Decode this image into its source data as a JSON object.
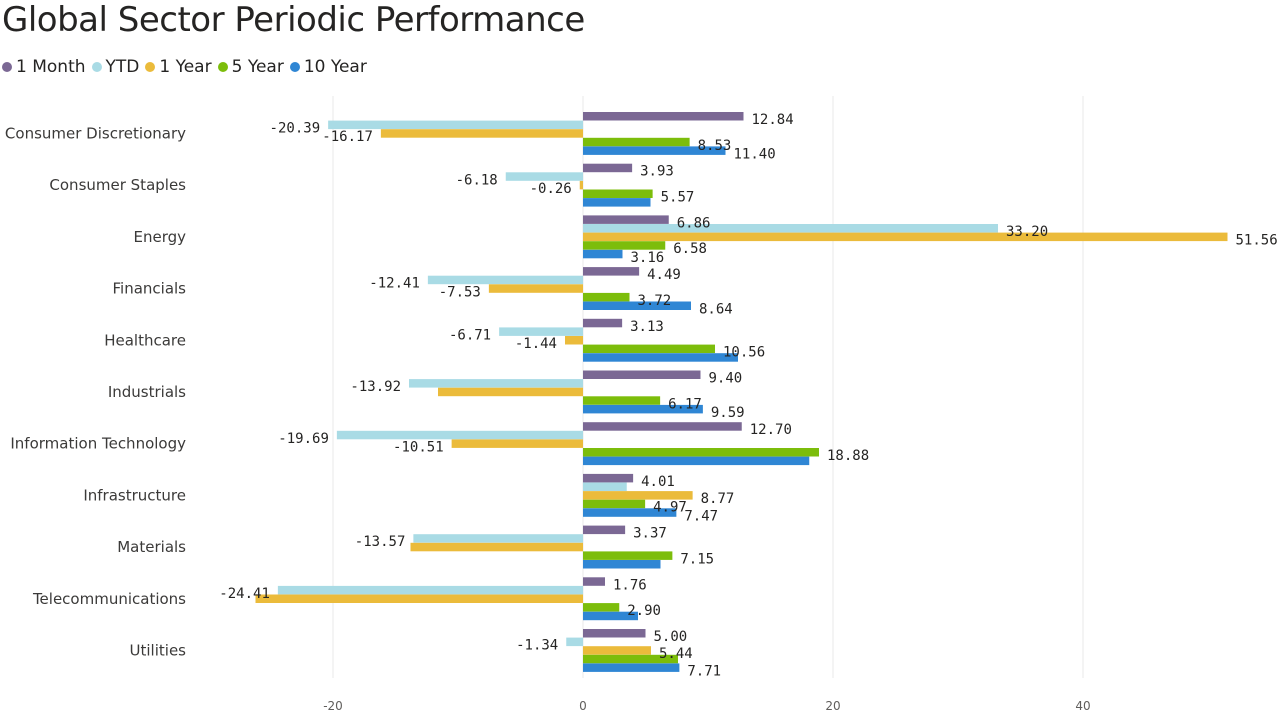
{
  "chart_data": {
    "type": "bar",
    "orientation": "horizontal",
    "title": "Global Sector Periodic Performance",
    "categories": [
      "Consumer Discretionary",
      "Consumer Staples",
      "Energy",
      "Financials",
      "Healthcare",
      "Industrials",
      "Information Technology",
      "Infrastructure",
      "Materials",
      "Telecommunications",
      "Utilities"
    ],
    "series": [
      {
        "name": "1 Month",
        "color": "#7b6894",
        "values": [
          12.84,
          3.93,
          6.86,
          4.49,
          3.13,
          9.4,
          12.7,
          4.01,
          3.37,
          1.76,
          5.0
        ],
        "labels": [
          "12.84",
          "3.93",
          "6.86",
          "4.49",
          "3.13",
          "9.40",
          "12.70",
          "4.01",
          "3.37",
          "1.76",
          "5.00"
        ]
      },
      {
        "name": "YTD",
        "color": "#a9dbe5",
        "values": [
          -20.39,
          -6.18,
          33.2,
          -12.41,
          -6.71,
          -13.92,
          -19.69,
          3.5,
          -13.57,
          -24.41,
          -1.34
        ],
        "labels": [
          "-20.39",
          "-6.18",
          "33.20",
          "-12.41",
          "-6.71",
          "-13.92",
          "-19.69",
          "",
          "-13.57",
          "-24.41",
          "-1.34"
        ]
      },
      {
        "name": "1 Year",
        "color": "#ebbb3b",
        "values": [
          -16.17,
          -0.26,
          51.56,
          -7.53,
          -1.44,
          -11.6,
          -10.51,
          8.77,
          -13.8,
          -26.2,
          5.44
        ],
        "labels": [
          "-16.17",
          "-0.26",
          "51.56",
          "-7.53",
          "-1.44",
          "",
          "-10.51",
          "8.77",
          "",
          "",
          "5.44"
        ]
      },
      {
        "name": "5 Year",
        "color": "#7cbd0b",
        "values": [
          8.53,
          5.57,
          6.58,
          3.72,
          10.56,
          6.17,
          18.88,
          4.97,
          7.15,
          2.9,
          7.6
        ],
        "labels": [
          "8.53",
          "5.57",
          "6.58",
          "3.72",
          "10.56",
          "6.17",
          "18.88",
          "4.97",
          "7.15",
          "2.90",
          ""
        ]
      },
      {
        "name": "10 Year",
        "color": "#2f86d4",
        "values": [
          11.4,
          5.4,
          3.16,
          8.64,
          12.4,
          9.59,
          18.1,
          7.47,
          6.2,
          4.4,
          7.71
        ],
        "labels": [
          "11.40",
          "",
          "3.16",
          "8.64",
          "",
          "9.59",
          "",
          "7.47",
          "",
          "",
          "7.71"
        ]
      }
    ],
    "xlim": [
      -31,
      56
    ],
    "xticks": [
      -20,
      0,
      20,
      40
    ],
    "xtick_labels": [
      "-20",
      "0",
      "20",
      "40"
    ],
    "grid": true,
    "legend_position": "top-left"
  }
}
